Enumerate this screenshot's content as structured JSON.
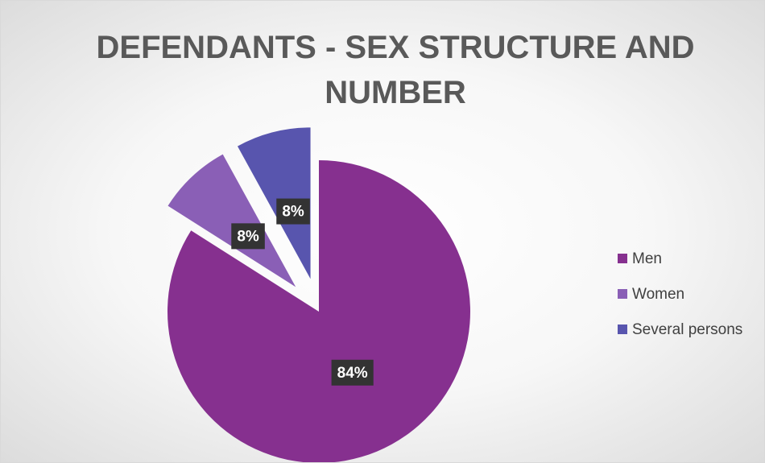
{
  "chart_data": {
    "type": "pie",
    "title": "DEFENDANTS - SEX STRUCTURE AND NUMBER",
    "categories": [
      "Men",
      "Women",
      "Several persons"
    ],
    "values": [
      84,
      8,
      8
    ],
    "value_labels": [
      "84%",
      "8%",
      "8%"
    ],
    "colors": [
      "#86308f",
      "#8a5fb6",
      "#5855ae"
    ],
    "legend": "right"
  }
}
